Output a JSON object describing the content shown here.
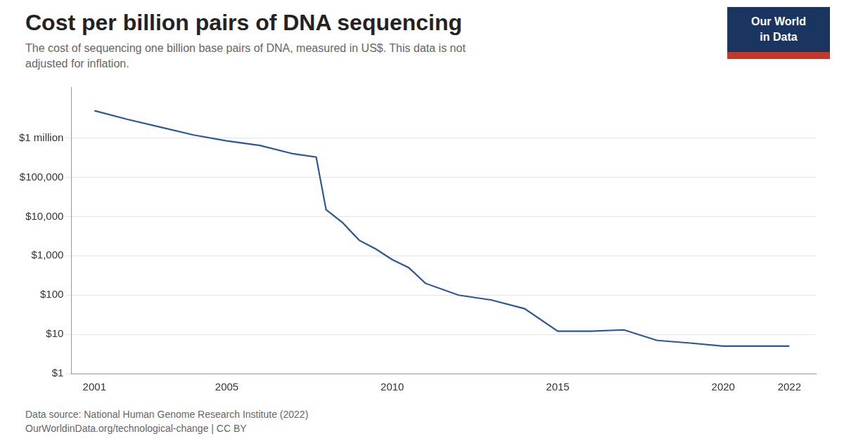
{
  "chart_data": {
    "type": "line",
    "title": "Cost per billion pairs of DNA sequencing",
    "subtitle": "The cost of sequencing one billion base pairs of DNA, measured in US$. This data is not\nadjusted for inflation.",
    "source": [
      "Data source: National Human Genome Research Institute (2022)",
      "OurWorldinData.org/technological-change | CC BY"
    ],
    "logo": [
      "Our World",
      "in Data"
    ],
    "x": [
      2001,
      2002,
      2003,
      2004,
      2005,
      2006,
      2007,
      2007.7,
      2008,
      2008.5,
      2009,
      2009.5,
      2010,
      2010.5,
      2011,
      2012,
      2013,
      2014,
      2015,
      2016,
      2017,
      2018,
      2019,
      2020,
      2021,
      2022
    ],
    "values": [
      5000000,
      3000000,
      1900000,
      1200000,
      850000,
      650000,
      400000,
      330000,
      15000,
      7000,
      2500,
      1500,
      800,
      500,
      200,
      100,
      75,
      45,
      12,
      12,
      13,
      7,
      6,
      5,
      5,
      5
    ],
    "color": "#2a5799",
    "log": "y",
    "grid": "y",
    "xlim": [
      2000.3,
      2022.8
    ],
    "xticks": [
      2001,
      2005,
      2010,
      2015,
      2020,
      2022
    ],
    "ylim": [
      1,
      20000000
    ],
    "yticks": [
      {
        "value": 1,
        "label": "$1"
      },
      {
        "value": 10,
        "label": "$10"
      },
      {
        "value": 100,
        "label": "$100"
      },
      {
        "value": 1000,
        "label": "$1,000"
      },
      {
        "value": 10000,
        "label": "$10,000"
      },
      {
        "value": 100000,
        "label": "$100,000"
      },
      {
        "value": 1000000,
        "label": "$1 million"
      }
    ]
  }
}
